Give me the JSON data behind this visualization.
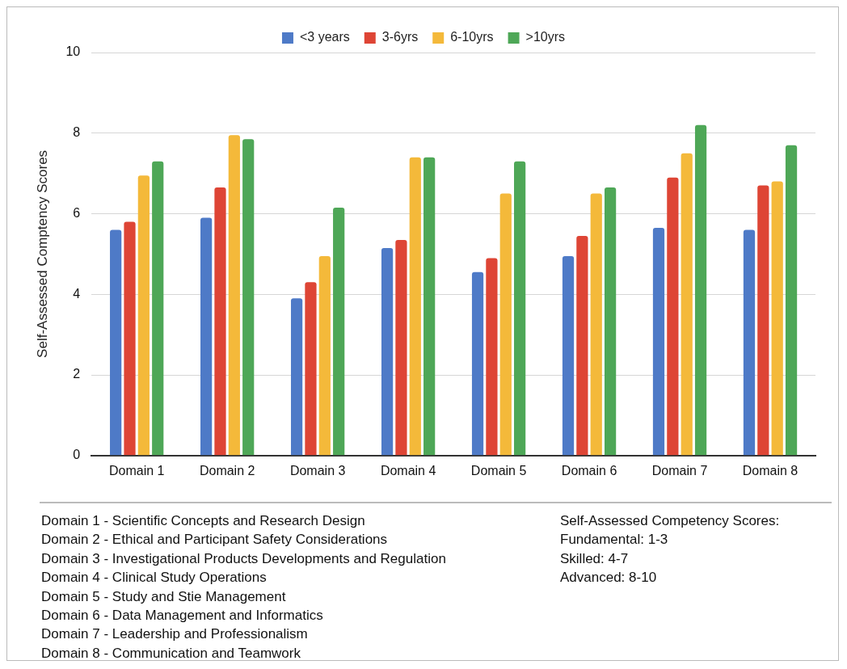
{
  "chart_data": {
    "type": "bar",
    "ylabel": "Self-Assessed Comptency Scores",
    "categories": [
      "Domain 1",
      "Domain 2",
      "Domain 3",
      "Domain 4",
      "Domain 5",
      "Domain 6",
      "Domain 7",
      "Domain 8"
    ],
    "series": [
      {
        "name": "<3 years",
        "color": "#4e7ac7",
        "values": [
          5.6,
          5.9,
          3.9,
          5.15,
          4.55,
          4.95,
          5.65,
          5.6
        ]
      },
      {
        "name": "3-6yrs",
        "color": "#de4535",
        "values": [
          5.8,
          6.65,
          4.3,
          5.35,
          4.9,
          5.45,
          6.9,
          6.7
        ]
      },
      {
        "name": "6-10yrs",
        "color": "#f4b93a",
        "values": [
          6.95,
          7.95,
          4.95,
          7.4,
          6.5,
          6.5,
          7.5,
          6.8
        ]
      },
      {
        "name": ">10yrs",
        "color": "#4ea757",
        "values": [
          7.3,
          7.85,
          6.15,
          7.4,
          7.3,
          6.65,
          8.2,
          7.7
        ]
      }
    ],
    "ylim": [
      0,
      10
    ],
    "yticks": [
      0,
      2,
      4,
      6,
      8,
      10
    ],
    "grid": "y",
    "legend": "top",
    "annotations": [
      "Domain 1 - Scientific Concepts and Research Design",
      "Domain 2 - Ethical and Participant Safety Considerations",
      "Domain 3 - Investigational Products Developments and Regulation",
      "Domain 4 - Clinical Study Operations",
      "Domain 5 - Study and Stie Management",
      "Domain 6 - Data Management and Informatics",
      "Domain 7 - Leadership and Professionalism",
      "Domain 8 - Communication and Teamwork",
      "Self-Assessed Competency Scores:",
      "Fundamental: 1-3",
      "Skilled: 4-7",
      "Advanced: 8-10"
    ]
  }
}
